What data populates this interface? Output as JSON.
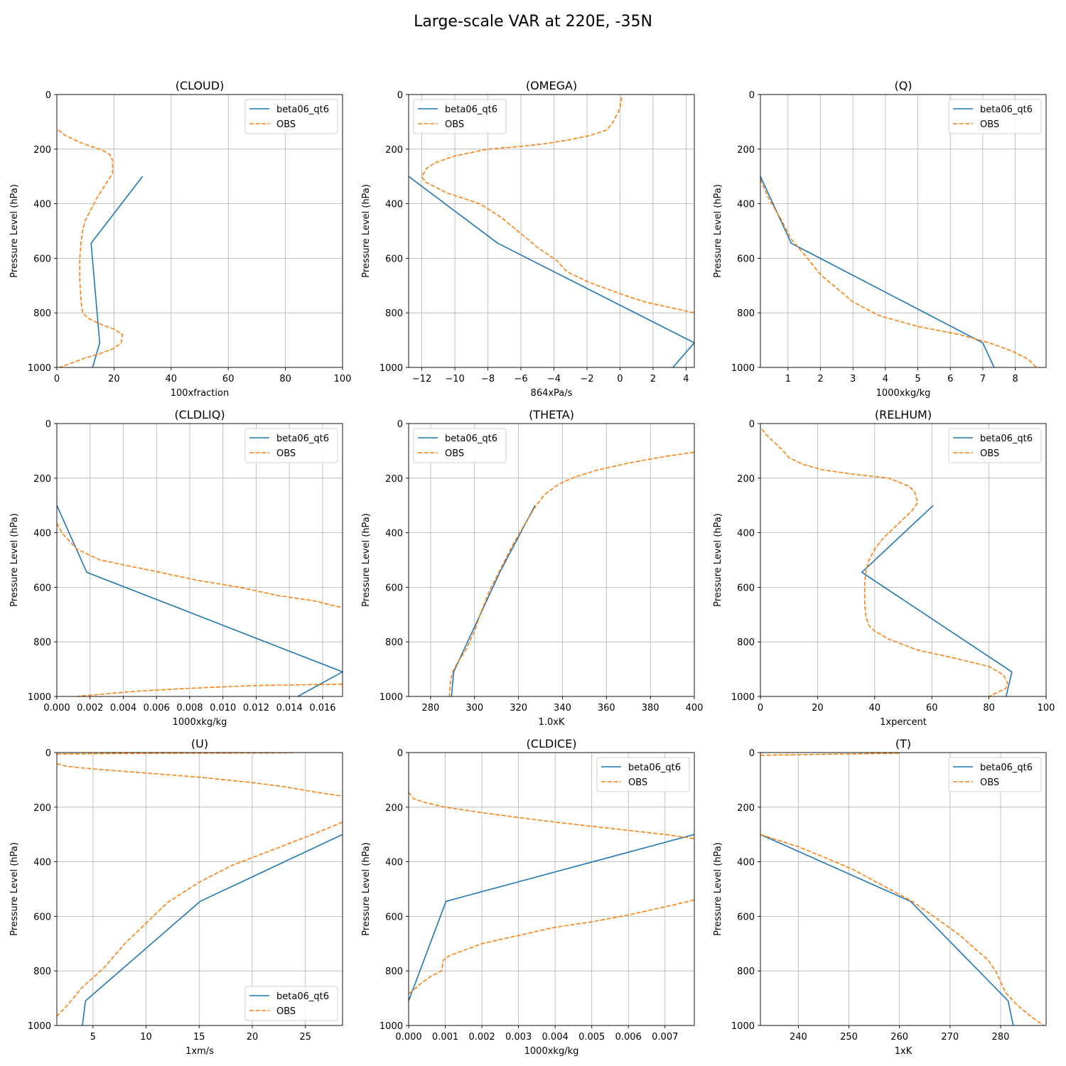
{
  "figure": {
    "title": "Large-scale VAR at 220E, -35N"
  },
  "colors": {
    "model": "#1f77b4",
    "obs": "#ff7f0e",
    "grid": "#b0b0b0"
  },
  "chart_data": [
    {
      "type": "line",
      "title": "(CLOUD)",
      "xlabel": "100xfraction",
      "ylabel": "Pressure Level (hPa)",
      "xlim": [
        0,
        100
      ],
      "ylim": [
        1000,
        0
      ],
      "xticks": [
        0,
        20,
        40,
        60,
        80,
        100
      ],
      "xticklabels": [
        "0",
        "20",
        "40",
        "60",
        "80",
        "100"
      ],
      "yticks": [
        0,
        200,
        400,
        600,
        800,
        1000
      ],
      "legend": "top-right",
      "series": [
        {
          "name": "beta06_qt6",
          "style": "solid",
          "x": [
            30,
            12,
            15,
            12.5
          ],
          "y": [
            300,
            545,
            910,
            1000
          ]
        },
        {
          "name": "OBS",
          "style": "dashed",
          "x": [
            0.5,
            3,
            8,
            12,
            15,
            17,
            18.5,
            19.5,
            19.5,
            17,
            14,
            12,
            10,
            9,
            8.5,
            8,
            8,
            8.5,
            9,
            11,
            15,
            20,
            23,
            22.5,
            20,
            15,
            10,
            5,
            1
          ],
          "y": [
            130,
            150,
            175,
            190,
            200,
            210,
            220,
            240,
            290,
            330,
            380,
            420,
            460,
            500,
            540,
            600,
            680,
            760,
            800,
            820,
            840,
            860,
            880,
            910,
            930,
            950,
            965,
            985,
            1000
          ]
        }
      ]
    },
    {
      "type": "line",
      "title": "(OMEGA)",
      "xlabel": "864xPa/s",
      "ylabel": "Pressure Level (hPa)",
      "xlim": [
        -12.8,
        4.5
      ],
      "ylim": [
        1000,
        0
      ],
      "xticks": [
        -12,
        -10,
        -8,
        -6,
        -4,
        -2,
        0,
        2,
        4
      ],
      "xticklabels": [
        "−12",
        "−10",
        "−8",
        "−6",
        "−4",
        "−2",
        "0",
        "2",
        "4"
      ],
      "yticks": [
        0,
        200,
        400,
        600,
        800,
        1000
      ],
      "legend": "top-left",
      "series": [
        {
          "name": "beta06_qt6",
          "style": "solid",
          "x": [
            -12.8,
            -7.4,
            4.5,
            3.2
          ],
          "y": [
            300,
            545,
            910,
            1000
          ]
        },
        {
          "name": "OBS",
          "style": "dashed",
          "x": [
            0.1,
            0.0,
            -0.4,
            -0.8,
            -1.8,
            -3.0,
            -4.5,
            -6.0,
            -8.0,
            -10.0,
            -11.2,
            -11.7,
            -12.0,
            -11.8,
            -10.5,
            -8.5,
            -7.2,
            -6.0,
            -5.0,
            -3.8,
            -3.2,
            -1.8,
            0.0,
            1.5,
            3.0,
            4.5
          ],
          "y": [
            10,
            50,
            100,
            130,
            150,
            165,
            180,
            190,
            200,
            225,
            250,
            270,
            300,
            320,
            360,
            400,
            450,
            510,
            560,
            610,
            650,
            690,
            730,
            760,
            780,
            800
          ]
        }
      ]
    },
    {
      "type": "line",
      "title": "(Q)",
      "xlabel": "1000xkg/kg",
      "ylabel": "Pressure Level (hPa)",
      "xlim": [
        0.15,
        8.95
      ],
      "ylim": [
        1000,
        0
      ],
      "xticks": [
        1,
        2,
        3,
        4,
        5,
        6,
        7,
        8
      ],
      "xticklabels": [
        "1",
        "2",
        "3",
        "4",
        "5",
        "6",
        "7",
        "8"
      ],
      "yticks": [
        0,
        200,
        400,
        600,
        800,
        1000
      ],
      "legend": "top-right",
      "series": [
        {
          "name": "beta06_qt6",
          "style": "solid",
          "x": [
            0.15,
            1.1,
            7.0,
            7.35
          ],
          "y": [
            300,
            545,
            910,
            1000
          ]
        },
        {
          "name": "OBS",
          "style": "dashed",
          "x": [
            0.15,
            0.4,
            0.8,
            1.1,
            1.6,
            2.0,
            2.5,
            3.0,
            3.8,
            5.0,
            6.3,
            7.2,
            7.9,
            8.4,
            8.65
          ],
          "y": [
            310,
            380,
            460,
            530,
            600,
            660,
            710,
            760,
            810,
            850,
            880,
            910,
            940,
            970,
            1000
          ]
        }
      ]
    },
    {
      "type": "line",
      "title": "(CLDLIQ)",
      "xlabel": "1000xkg/kg",
      "ylabel": "Pressure Level (hPa)",
      "xlim": [
        0,
        0.0172
      ],
      "ylim": [
        1000,
        0
      ],
      "xticks": [
        0,
        0.002,
        0.004,
        0.006,
        0.008,
        0.01,
        0.012,
        0.014,
        0.016
      ],
      "xticklabels": [
        "0.000",
        "0.002",
        "0.004",
        "0.006",
        "0.008",
        "0.010",
        "0.012",
        "0.014",
        "0.016"
      ],
      "yticks": [
        0,
        200,
        400,
        600,
        800,
        1000
      ],
      "legend": "top-right",
      "series": [
        {
          "name": "beta06_qt6",
          "style": "solid",
          "x": [
            0.0,
            0.0018,
            0.0172,
            0.0145
          ],
          "y": [
            300,
            545,
            910,
            1000
          ]
        },
        {
          "name": "OBS",
          "style": "dashed",
          "x": [
            0.0,
            0.0003,
            0.0012,
            0.0026,
            0.0042,
            0.0062,
            0.0085,
            0.011,
            0.0133,
            0.0155,
            0.0172
          ],
          "y": [
            365,
            400,
            460,
            500,
            520,
            545,
            575,
            600,
            630,
            650,
            675
          ]
        },
        {
          "name": "OBS",
          "style": "dashed",
          "x": [
            0.0172,
            0.015,
            0.012,
            0.008,
            0.005,
            0.003,
            0.0012
          ],
          "y": [
            955,
            957,
            960,
            970,
            980,
            990,
            1000
          ]
        }
      ]
    },
    {
      "type": "line",
      "title": "(THETA)",
      "xlabel": "1.0xK",
      "ylabel": "Pressure Level (hPa)",
      "xlim": [
        270,
        400
      ],
      "ylim": [
        1000,
        0
      ],
      "xticks": [
        280,
        300,
        320,
        340,
        360,
        380,
        400
      ],
      "xticklabels": [
        "280",
        "300",
        "320",
        "340",
        "360",
        "380",
        "400"
      ],
      "yticks": [
        0,
        200,
        400,
        600,
        800,
        1000
      ],
      "legend": "top-left",
      "series": [
        {
          "name": "beta06_qt6",
          "style": "solid",
          "x": [
            327.5,
            311.5,
            290.5,
            289.5
          ],
          "y": [
            300,
            545,
            910,
            1000
          ]
        },
        {
          "name": "OBS",
          "style": "dashed",
          "x": [
            400,
            387,
            370,
            356,
            346,
            340,
            336,
            332,
            328,
            322,
            317,
            312,
            307,
            303,
            300,
            296,
            292,
            290,
            289,
            288.5
          ],
          "y": [
            105,
            120,
            145,
            170,
            195,
            215,
            235,
            260,
            300,
            380,
            450,
            530,
            610,
            690,
            760,
            830,
            880,
            910,
            950,
            1000
          ]
        }
      ]
    },
    {
      "type": "line",
      "title": "(RELHUM)",
      "xlabel": "1xpercent",
      "ylabel": "Pressure Level (hPa)",
      "xlim": [
        0,
        100
      ],
      "ylim": [
        1000,
        0
      ],
      "xticks": [
        0,
        20,
        40,
        60,
        80,
        100
      ],
      "xticklabels": [
        "0",
        "20",
        "40",
        "60",
        "80",
        "100"
      ],
      "yticks": [
        0,
        200,
        400,
        600,
        800,
        1000
      ],
      "legend": "top-right",
      "series": [
        {
          "name": "beta06_qt6",
          "style": "solid",
          "x": [
            60.5,
            35.5,
            88,
            86
          ],
          "y": [
            300,
            545,
            910,
            1000
          ]
        },
        {
          "name": "OBS",
          "style": "dashed",
          "x": [
            0.5,
            2,
            5,
            8,
            10,
            15,
            22,
            32,
            45,
            52,
            54,
            55,
            53,
            50,
            47,
            43,
            40,
            38,
            37,
            36.5,
            36.5,
            37,
            38,
            40,
            45,
            55,
            68,
            80,
            85,
            86.5,
            86,
            83,
            80
          ],
          "y": [
            20,
            40,
            70,
            100,
            125,
            150,
            170,
            185,
            200,
            230,
            250,
            290,
            320,
            350,
            380,
            420,
            460,
            500,
            540,
            580,
            660,
            710,
            740,
            760,
            790,
            830,
            860,
            890,
            920,
            950,
            970,
            985,
            1000
          ]
        }
      ]
    },
    {
      "type": "line",
      "title": "(U)",
      "xlabel": "1xm/s",
      "ylabel": "Pressure Level (hPa)",
      "xlim": [
        1.6,
        28.5
      ],
      "ylim": [
        1000,
        0
      ],
      "xticks": [
        5,
        10,
        15,
        20,
        25
      ],
      "xticklabels": [
        "5",
        "10",
        "15",
        "20",
        "25"
      ],
      "yticks": [
        0,
        200,
        400,
        600,
        800,
        1000
      ],
      "legend": "bottom-right",
      "series": [
        {
          "name": "beta06_qt6",
          "style": "solid",
          "x": [
            28.5,
            15.1,
            4.3,
            4.0
          ],
          "y": [
            300,
            545,
            910,
            1000
          ]
        },
        {
          "name": "OBS",
          "style": "dashed",
          "x": [
            1.6,
            8,
            15,
            22,
            24
          ],
          "y": [
            5,
            3,
            2,
            1,
            0
          ]
        },
        {
          "name": "OBS",
          "style": "dashed",
          "x": [
            1.6,
            2.5,
            5,
            10,
            15,
            20,
            23,
            26,
            28.5
          ],
          "y": [
            40,
            50,
            60,
            75,
            90,
            110,
            125,
            145,
            160
          ]
        },
        {
          "name": "OBS",
          "style": "dashed",
          "x": [
            28.5,
            26,
            23,
            20,
            18,
            15,
            12,
            10,
            8,
            6,
            4,
            2.5,
            1.6
          ],
          "y": [
            255,
            295,
            340,
            385,
            415,
            475,
            550,
            625,
            700,
            790,
            860,
            930,
            965
          ]
        }
      ]
    },
    {
      "type": "line",
      "title": "(CLDICE)",
      "xlabel": "1000xkg/kg",
      "ylabel": "Pressure Level (hPa)",
      "xlim": [
        0,
        0.0078
      ],
      "ylim": [
        1000,
        0
      ],
      "xticks": [
        0,
        0.001,
        0.002,
        0.003,
        0.004,
        0.005,
        0.006,
        0.007
      ],
      "xticklabels": [
        "0.000",
        "0.001",
        "0.002",
        "0.003",
        "0.004",
        "0.005",
        "0.006",
        "0.007"
      ],
      "yticks": [
        0,
        200,
        400,
        600,
        800,
        1000
      ],
      "legend": "top-right",
      "series": [
        {
          "name": "beta06_qt6",
          "style": "solid",
          "x": [
            0.0078,
            0.00102,
            0.0
          ],
          "y": [
            300,
            545,
            910
          ]
        },
        {
          "name": "OBS",
          "style": "dashed",
          "x": [
            0.0,
            0.00015,
            0.0005,
            0.001,
            0.002,
            0.003,
            0.004,
            0.005,
            0.006,
            0.007,
            0.0078
          ],
          "y": [
            145,
            170,
            185,
            200,
            220,
            238,
            255,
            270,
            285,
            300,
            315
          ]
        },
        {
          "name": "OBS",
          "style": "dashed",
          "x": [
            0.0078,
            0.007,
            0.006,
            0.005,
            0.004,
            0.003,
            0.002,
            0.0011,
            0.00095,
            0.0009,
            0.0006,
            0.0003,
            0.0
          ],
          "y": [
            540,
            565,
            595,
            620,
            640,
            670,
            700,
            745,
            760,
            800,
            820,
            850,
            885
          ]
        }
      ]
    },
    {
      "type": "line",
      "title": "(T)",
      "xlabel": "1xK",
      "ylabel": "Pressure Level (hPa)",
      "xlim": [
        232.5,
        289
      ],
      "ylim": [
        1000,
        0
      ],
      "xticks": [
        240,
        250,
        260,
        270,
        280
      ],
      "xticklabels": [
        "240",
        "250",
        "260",
        "270",
        "280"
      ],
      "yticks": [
        0,
        200,
        400,
        600,
        800,
        1000
      ],
      "legend": "top-right",
      "series": [
        {
          "name": "beta06_qt6",
          "style": "solid",
          "x": [
            232.5,
            262.2,
            281.5,
            282.5
          ],
          "y": [
            300,
            545,
            910,
            1000
          ]
        },
        {
          "name": "OBS",
          "style": "dashed",
          "x": [
            232.5,
            250,
            260
          ],
          "y": [
            10,
            5,
            2
          ]
        },
        {
          "name": "OBS",
          "style": "dashed",
          "x": [
            232.5,
            240,
            246,
            251,
            255,
            259,
            262.5,
            266,
            269,
            272,
            275,
            277.5,
            279,
            280,
            281,
            283,
            285.5,
            288.5
          ],
          "y": [
            300,
            345,
            390,
            430,
            470,
            510,
            545,
            590,
            630,
            670,
            720,
            760,
            800,
            840,
            880,
            920,
            960,
            1000
          ]
        }
      ]
    }
  ]
}
